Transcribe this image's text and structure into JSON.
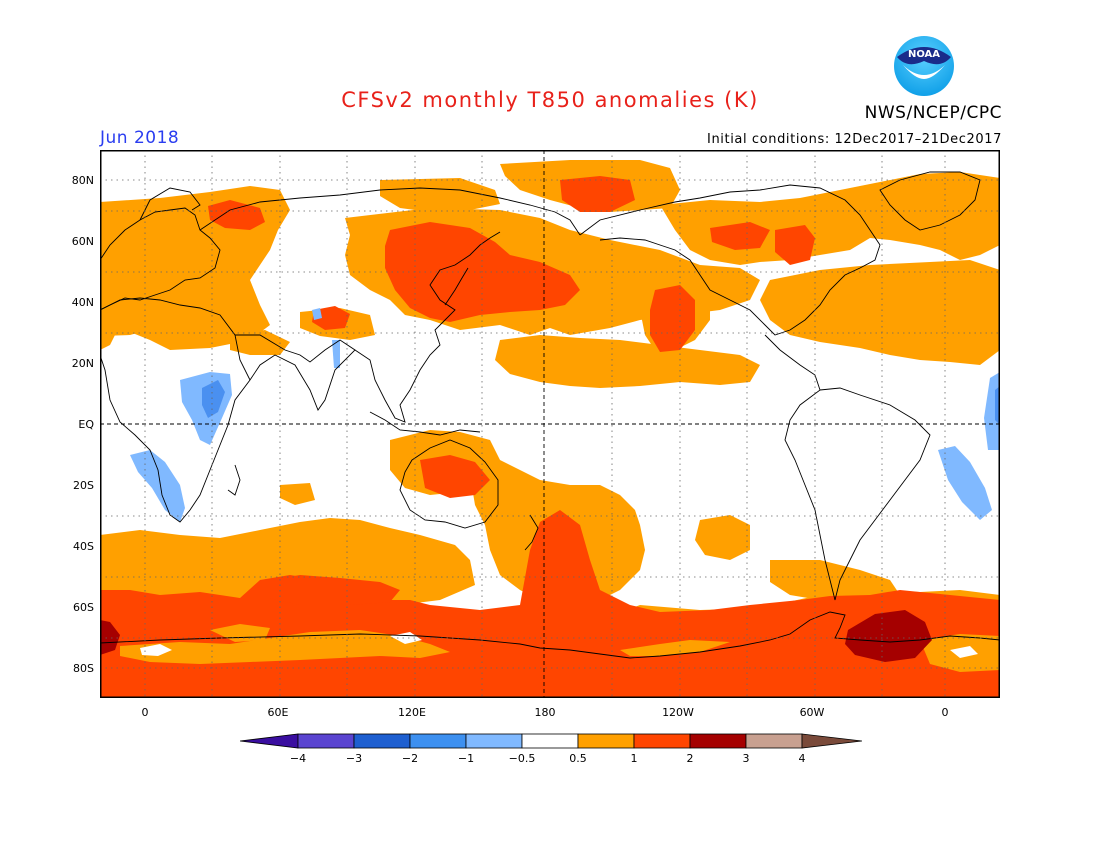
{
  "header": {
    "title": "CFSv2 monthly T850 anomalies (K)",
    "valid_month": "Jun 2018",
    "initial_conditions": "Initial conditions: 12Dec2017–21Dec2017",
    "organization": "NWS/NCEP/CPC",
    "logo_text": "NOAA",
    "logo_icon": "noaa-logo-icon"
  },
  "map": {
    "projection": "equirectangular, centred on 180",
    "lon_range": [
      -20,
      380
    ],
    "lat_range": [
      -90,
      90
    ],
    "grid": "dotted every 30°",
    "y_labels": [
      "80N",
      "60N",
      "40N",
      "20N",
      "EQ",
      "20S",
      "40S",
      "60S",
      "80S"
    ],
    "x_labels": [
      "0",
      "60E",
      "120E",
      "180",
      "120W",
      "60W",
      "0"
    ],
    "dashed_reference_lines": [
      "equator",
      "180 meridian"
    ],
    "colors": {
      "0.5_to_1": "#ffa000",
      "1_to_2": "#ff4500",
      "2_to_3": "#a50000",
      "-1_to_-0.5": "#80b9ff",
      "-2_to_-1": "#4a90f0"
    }
  },
  "colorbar": {
    "labels": [
      "−4",
      "−3",
      "−2",
      "−1",
      "−0.5",
      "0.5",
      "1",
      "2",
      "3",
      "4"
    ],
    "colors": [
      "#3a0ea0",
      "#5a44d0",
      "#1e5fd0",
      "#3d90f0",
      "#80b9ff",
      "#ffffff",
      "#ffa000",
      "#ff4500",
      "#a50000",
      "#c8a090",
      "#7a4a3a"
    ]
  }
}
